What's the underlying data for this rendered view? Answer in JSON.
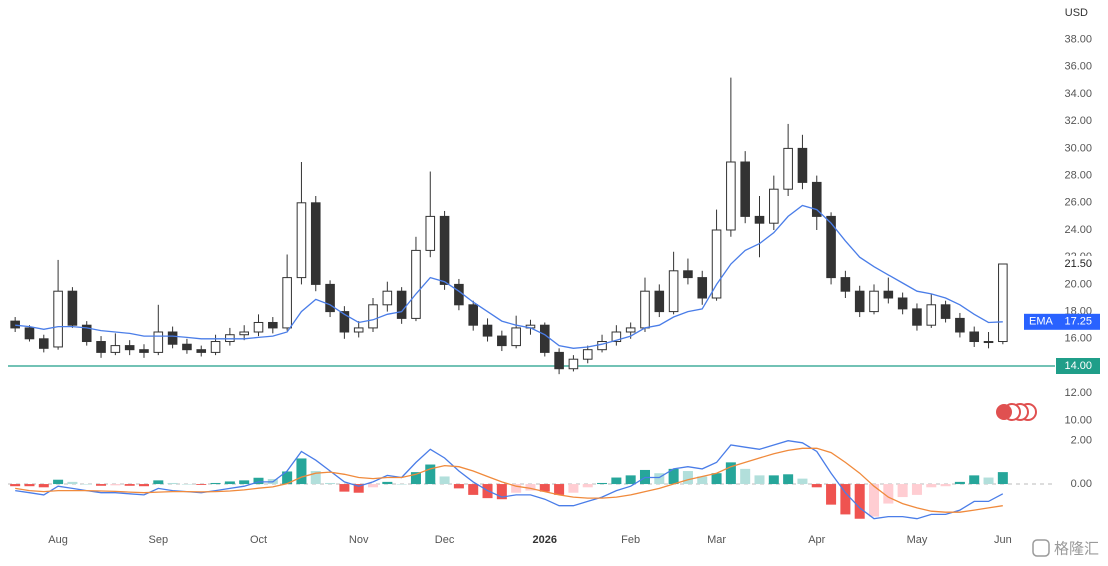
{
  "chart_data": {
    "type": "candlestick",
    "currency": "USD",
    "categories": [
      null,
      null,
      null,
      "Aug",
      null,
      null,
      null,
      null,
      null,
      null,
      "Sep",
      null,
      null,
      null,
      null,
      null,
      null,
      "Oct",
      null,
      null,
      null,
      null,
      null,
      null,
      "Nov",
      null,
      null,
      null,
      null,
      null,
      "Dec",
      null,
      null,
      null,
      null,
      null,
      null,
      "2026",
      null,
      null,
      null,
      null,
      null,
      "Feb",
      null,
      null,
      null,
      null,
      null,
      "Mar",
      null,
      null,
      null,
      null,
      null,
      null,
      "Apr",
      null,
      null,
      null,
      null,
      null,
      null,
      "May",
      null,
      null,
      null,
      null,
      null,
      "Jun"
    ],
    "open": [
      17.3,
      16.8,
      16.0,
      15.4,
      19.5,
      17.0,
      15.8,
      15.0,
      15.5,
      15.2,
      15.0,
      16.5,
      15.6,
      15.2,
      15.0,
      15.8,
      16.3,
      16.5,
      17.2,
      16.8,
      20.5,
      26.0,
      20.0,
      18.0,
      16.5,
      16.8,
      18.5,
      19.5,
      17.5,
      22.5,
      25.0,
      20.0,
      18.5,
      17.0,
      16.2,
      15.5,
      16.8,
      17.0,
      15.0,
      13.8,
      14.5,
      15.2,
      15.8,
      16.5,
      16.8,
      19.5,
      18.0,
      21.0,
      20.5,
      19.0,
      24.0,
      29.0,
      25.0,
      24.5,
      27.0,
      30.0,
      27.5,
      25.0,
      20.5,
      19.5,
      18.0,
      19.5,
      19.0,
      18.2,
      17.0,
      18.5,
      17.5,
      16.5,
      15.8,
      15.8
    ],
    "high": [
      17.6,
      17.0,
      16.3,
      21.8,
      19.8,
      17.3,
      16.2,
      16.4,
      15.9,
      15.6,
      18.5,
      16.9,
      16.0,
      15.5,
      16.3,
      16.8,
      17.0,
      17.8,
      17.6,
      22.2,
      29.0,
      26.5,
      20.3,
      18.4,
      17.3,
      19.0,
      20.2,
      19.8,
      23.5,
      28.3,
      25.4,
      20.4,
      18.8,
      17.5,
      16.6,
      17.7,
      17.4,
      17.2,
      15.3,
      14.8,
      15.5,
      16.3,
      17.0,
      17.2,
      20.5,
      20.0,
      22.4,
      21.9,
      21.0,
      25.5,
      35.2,
      29.8,
      26.5,
      28.0,
      31.8,
      31.0,
      28.0,
      25.3,
      21.0,
      19.9,
      20.0,
      20.5,
      19.4,
      18.6,
      19.3,
      18.8,
      17.9,
      16.9,
      16.5,
      21.5
    ],
    "low": [
      16.5,
      15.8,
      15.0,
      15.2,
      16.8,
      15.5,
      14.6,
      14.8,
      14.8,
      14.6,
      14.8,
      15.3,
      14.9,
      14.7,
      14.8,
      15.5,
      15.9,
      16.2,
      16.4,
      16.6,
      20.0,
      19.5,
      17.6,
      16.0,
      16.1,
      16.5,
      18.0,
      17.1,
      17.3,
      22.0,
      19.6,
      18.1,
      16.6,
      15.8,
      15.1,
      15.3,
      16.3,
      14.7,
      13.4,
      13.6,
      14.2,
      15.0,
      15.5,
      16.0,
      16.5,
      17.6,
      17.8,
      20.0,
      18.5,
      18.8,
      23.5,
      24.5,
      22.0,
      24.0,
      26.5,
      27.0,
      24.0,
      20.0,
      19.0,
      17.6,
      17.8,
      18.6,
      17.8,
      16.6,
      16.8,
      17.2,
      16.1,
      15.4,
      15.3,
      15.6
    ],
    "close": [
      16.8,
      16.0,
      15.3,
      19.5,
      17.0,
      15.8,
      15.0,
      15.5,
      15.2,
      15.0,
      16.5,
      15.6,
      15.2,
      15.0,
      15.8,
      16.3,
      16.5,
      17.2,
      16.8,
      20.5,
      26.0,
      20.0,
      18.0,
      16.5,
      16.8,
      18.5,
      19.5,
      17.5,
      22.5,
      25.0,
      20.0,
      18.5,
      17.0,
      16.2,
      15.5,
      16.8,
      17.0,
      15.0,
      13.8,
      14.5,
      15.2,
      15.8,
      16.5,
      16.8,
      19.5,
      18.0,
      21.0,
      20.5,
      19.0,
      24.0,
      29.0,
      25.0,
      24.5,
      27.0,
      30.0,
      27.5,
      25.0,
      20.5,
      19.5,
      18.0,
      19.5,
      19.0,
      18.2,
      17.0,
      18.5,
      17.5,
      16.5,
      15.8,
      15.8,
      21.5
    ],
    "up_color": "#ffffff",
    "down_color": "#333333",
    "outline_color": "#333333",
    "ylim": [
      9,
      39
    ],
    "yticks": [
      {
        "value": 10,
        "label": "10.00"
      },
      {
        "value": 12,
        "label": "12.00"
      },
      {
        "value": 16,
        "label": "16.00"
      },
      {
        "value": 18,
        "label": "18.00"
      },
      {
        "value": 20,
        "label": "20.00"
      },
      {
        "value": 22,
        "label": "22.00"
      },
      {
        "value": 24,
        "label": "24.00"
      },
      {
        "value": 26,
        "label": "26.00"
      },
      {
        "value": 28,
        "label": "28.00"
      },
      {
        "value": 30,
        "label": "30.00"
      },
      {
        "value": 32,
        "label": "32.00"
      },
      {
        "value": 34,
        "label": "34.00"
      },
      {
        "value": 36,
        "label": "36.00"
      },
      {
        "value": 38,
        "label": "38.00"
      }
    ],
    "ema": {
      "name": "EMA",
      "color": "#4a7de8",
      "badge_color": "#2962ff",
      "values": [
        17.0,
        16.9,
        16.7,
        16.9,
        16.9,
        16.8,
        16.6,
        16.5,
        16.4,
        16.2,
        16.2,
        16.2,
        16.1,
        16.0,
        16.0,
        16.0,
        16.0,
        16.1,
        16.2,
        16.5,
        18.0,
        18.9,
        18.5,
        17.8,
        17.2,
        17.4,
        17.8,
        18.0,
        19.3,
        20.5,
        20.2,
        19.5,
        18.7,
        18.0,
        17.3,
        17.0,
        16.8,
        16.3,
        15.5,
        15.3,
        15.4,
        15.6,
        15.9,
        16.2,
        16.8,
        17.0,
        17.6,
        18.0,
        18.2,
        20.0,
        21.5,
        22.5,
        23.0,
        23.8,
        25.0,
        25.8,
        25.5,
        24.5,
        23.2,
        22.0,
        21.3,
        20.7,
        20.1,
        19.5,
        19.3,
        19.0,
        18.5,
        17.8,
        17.2,
        17.25
      ]
    },
    "last_price": {
      "value": 21.5,
      "label": "21.50"
    },
    "hline": {
      "value": 14,
      "label": "14.00",
      "color": "#1f9e89"
    },
    "macd": {
      "ylim": [
        -1.75,
        2.4
      ],
      "yticks": [
        {
          "value": 0,
          "label": "0.00"
        },
        {
          "value": 2,
          "label": "2.00"
        }
      ],
      "macd_line": {
        "color": "#4a7de8",
        "values": [
          -0.3,
          -0.4,
          -0.5,
          -0.1,
          -0.2,
          -0.3,
          -0.4,
          -0.4,
          -0.45,
          -0.5,
          -0.2,
          -0.3,
          -0.35,
          -0.4,
          -0.3,
          -0.2,
          -0.1,
          0.1,
          0.1,
          0.6,
          1.5,
          1.1,
          0.6,
          0.1,
          -0.1,
          0.1,
          0.4,
          0.3,
          1.0,
          1.6,
          1.2,
          0.6,
          0.1,
          -0.3,
          -0.6,
          -0.5,
          -0.5,
          -0.7,
          -1.0,
          -1.0,
          -0.8,
          -0.6,
          -0.3,
          -0.1,
          0.3,
          0.3,
          0.7,
          0.8,
          0.7,
          1.0,
          1.8,
          1.7,
          1.6,
          1.8,
          2.0,
          1.9,
          1.5,
          0.5,
          -0.4,
          -1.1,
          -1.6,
          -1.5,
          -1.5,
          -1.6,
          -1.4,
          -1.4,
          -1.2,
          -0.8,
          -0.8,
          -0.45
        ]
      },
      "signal_line": {
        "color": "#f08a3c",
        "values": [
          -0.2,
          -0.3,
          -0.35,
          -0.3,
          -0.3,
          -0.3,
          -0.32,
          -0.34,
          -0.37,
          -0.4,
          -0.37,
          -0.35,
          -0.35,
          -0.36,
          -0.35,
          -0.32,
          -0.27,
          -0.19,
          -0.13,
          0.02,
          0.32,
          0.5,
          0.55,
          0.45,
          0.3,
          0.25,
          0.3,
          0.3,
          0.45,
          0.7,
          0.85,
          0.8,
          0.6,
          0.35,
          0.1,
          -0.1,
          -0.2,
          -0.35,
          -0.5,
          -0.6,
          -0.65,
          -0.65,
          -0.6,
          -0.5,
          -0.35,
          -0.2,
          0.0,
          0.2,
          0.35,
          0.5,
          0.8,
          1.0,
          1.2,
          1.4,
          1.55,
          1.65,
          1.65,
          1.45,
          1.0,
          0.5,
          -0.1,
          -0.6,
          -0.9,
          -1.1,
          -1.25,
          -1.3,
          -1.3,
          -1.2,
          -1.1,
          -1.0
        ]
      },
      "histogram": {
        "colors": {
          "up_rising": "#26a69a",
          "up_falling": "#b2dfdb",
          "down_falling": "#ef5350",
          "down_rising": "#ffcdd2"
        },
        "values": [
          -0.1,
          -0.1,
          -0.15,
          0.2,
          0.1,
          0,
          -0.08,
          -0.06,
          -0.08,
          -0.1,
          0.17,
          0.05,
          0,
          -0.04,
          0.05,
          0.12,
          0.17,
          0.29,
          0.23,
          0.58,
          1.18,
          0.6,
          0.05,
          -0.35,
          -0.4,
          -0.15,
          0.1,
          0,
          0.55,
          0.9,
          0.35,
          -0.2,
          -0.5,
          -0.65,
          -0.7,
          -0.4,
          -0.3,
          -0.35,
          -0.5,
          -0.4,
          -0.15,
          0.05,
          0.3,
          0.4,
          0.65,
          0.5,
          0.7,
          0.6,
          0.35,
          0.5,
          1.0,
          0.7,
          0.4,
          0.4,
          0.45,
          0.25,
          -0.15,
          -0.95,
          -1.4,
          -1.6,
          -1.5,
          -0.9,
          -0.6,
          -0.5,
          -0.15,
          -0.1,
          0.1,
          0.4,
          0.3,
          0.55
        ]
      }
    },
    "watermark": "格隆汇"
  }
}
